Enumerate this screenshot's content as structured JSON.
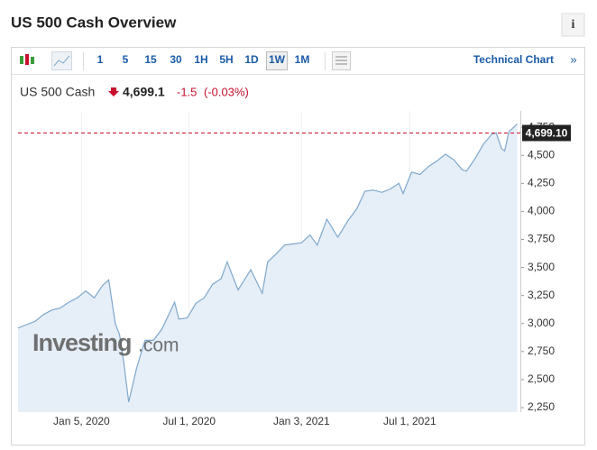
{
  "header": {
    "title": "US 500 Cash Overview",
    "info": "i"
  },
  "toolbar": {
    "intervals": [
      "1",
      "5",
      "15",
      "30",
      "1H",
      "5H",
      "1D",
      "1W",
      "1M"
    ],
    "selected": "1W",
    "link": "Technical Chart",
    "link_arrow": "»"
  },
  "quote": {
    "name": "US 500 Cash",
    "price": "4,699.1",
    "change": "-1.5",
    "change_pct": "(-0.03%)"
  },
  "watermark": {
    "brand": "Investing",
    "suffix": ".com"
  },
  "chart_data": {
    "type": "area",
    "x": [
      "2019-09-22",
      "2019-10-06",
      "2019-10-20",
      "2019-11-03",
      "2019-11-17",
      "2019-12-01",
      "2019-12-15",
      "2019-12-29",
      "2020-01-12",
      "2020-01-26",
      "2020-02-09",
      "2020-02-19",
      "2020-03-01",
      "2020-03-08",
      "2020-03-15",
      "2020-03-23",
      "2020-04-05",
      "2020-04-19",
      "2020-05-03",
      "2020-05-17",
      "2020-06-07",
      "2020-06-14",
      "2020-06-28",
      "2020-07-12",
      "2020-07-26",
      "2020-08-09",
      "2020-08-23",
      "2020-09-02",
      "2020-09-20",
      "2020-10-11",
      "2020-10-30",
      "2020-11-08",
      "2020-11-22",
      "2020-12-06",
      "2020-12-20",
      "2021-01-03",
      "2021-01-17",
      "2021-01-29",
      "2021-02-14",
      "2021-03-04",
      "2021-03-21",
      "2021-04-04",
      "2021-04-18",
      "2021-05-02",
      "2021-05-16",
      "2021-05-30",
      "2021-06-13",
      "2021-06-20",
      "2021-07-04",
      "2021-07-18",
      "2021-08-01",
      "2021-08-15",
      "2021-08-29",
      "2021-09-12",
      "2021-09-26",
      "2021-10-03",
      "2021-10-17",
      "2021-10-31",
      "2021-11-14",
      "2021-11-21",
      "2021-11-30",
      "2021-12-05",
      "2021-12-12",
      "2021-12-26"
    ],
    "values": [
      2960,
      2990,
      3020,
      3080,
      3120,
      3140,
      3190,
      3230,
      3290,
      3230,
      3340,
      3390,
      3000,
      2900,
      2650,
      2300,
      2600,
      2850,
      2850,
      2950,
      3190,
      3040,
      3050,
      3180,
      3230,
      3350,
      3400,
      3550,
      3300,
      3480,
      3270,
      3550,
      3620,
      3700,
      3710,
      3720,
      3790,
      3700,
      3930,
      3770,
      3920,
      4020,
      4180,
      4190,
      4170,
      4200,
      4250,
      4160,
      4350,
      4330,
      4400,
      4450,
      4510,
      4460,
      4370,
      4360,
      4470,
      4600,
      4690,
      4700,
      4560,
      4540,
      4710,
      4780
    ],
    "color": "#7fa8cc",
    "fill": "#e6eef7",
    "last_price": {
      "value": 4699.1,
      "label": "4,699.10"
    },
    "last_price_color": "#c8102e",
    "xlim": [
      "2019-09-22",
      "2021-12-31"
    ],
    "xticks": [
      {
        "value": "2020-01-05",
        "label": "Jan 5, 2020"
      },
      {
        "value": "2020-07-01",
        "label": "Jul 1, 2020"
      },
      {
        "value": "2021-01-03",
        "label": "Jan 3, 2021"
      },
      {
        "value": "2021-07-01",
        "label": "Jul 1, 2021"
      }
    ],
    "ylim": [
      2210,
      4896
    ],
    "yticks": [
      {
        "value": 2250,
        "label": "2,250"
      },
      {
        "value": 2500,
        "label": "2,500"
      },
      {
        "value": 2750,
        "label": "2,750"
      },
      {
        "value": 3000,
        "label": "3,000"
      },
      {
        "value": 3250,
        "label": "3,250"
      },
      {
        "value": 3500,
        "label": "3,500"
      },
      {
        "value": 3750,
        "label": "3,750"
      },
      {
        "value": 4000,
        "label": "4,000"
      },
      {
        "value": 4250,
        "label": "4,250"
      },
      {
        "value": 4500,
        "label": "4,500"
      },
      {
        "value": 4750,
        "label": "4,750"
      }
    ],
    "grid": true
  }
}
